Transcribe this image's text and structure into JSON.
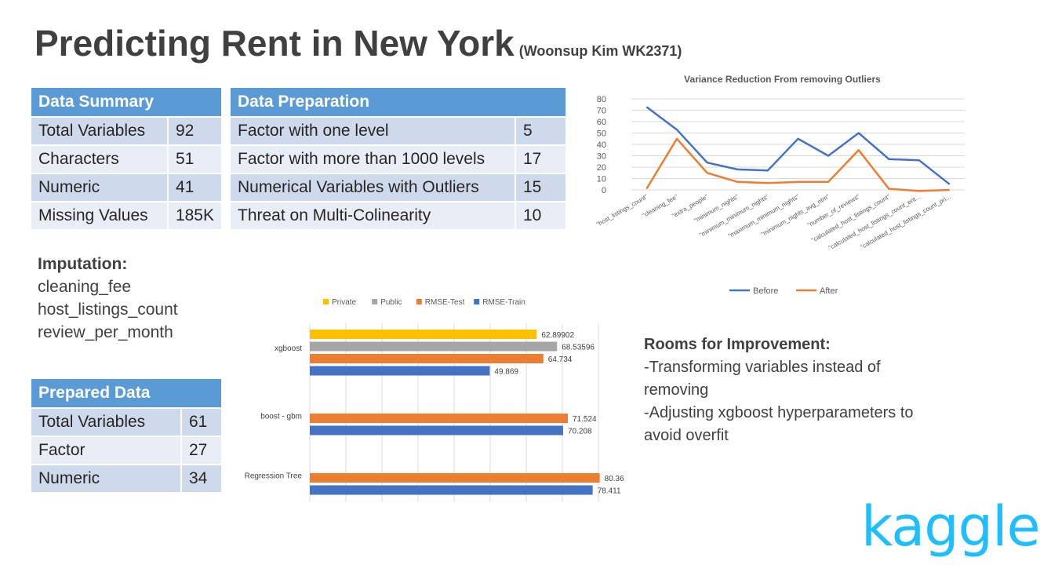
{
  "header": {
    "title": "Predicting Rent in New York",
    "subtitle": "(Woonsup  Kim WK2371)"
  },
  "data_summary": {
    "heading": "Data Summary",
    "rows": [
      {
        "label": "Total Variables",
        "value": "92"
      },
      {
        "label": "Characters",
        "value": "51"
      },
      {
        "label": "Numeric",
        "value": "41"
      },
      {
        "label": "Missing Values",
        "value": "185K"
      }
    ]
  },
  "data_preparation": {
    "heading": "Data Preparation",
    "rows": [
      {
        "label": "Factor with one level",
        "value": "5"
      },
      {
        "label": "Factor with more than 1000 levels",
        "value": "17"
      },
      {
        "label": "Numerical Variables with Outliers",
        "value": "15"
      },
      {
        "label": "Threat on Multi-Colinearity",
        "value": "10"
      }
    ]
  },
  "imputation": {
    "heading": "Imputation:",
    "items": [
      "cleaning_fee",
      "host_listings_count",
      "review_per_month"
    ]
  },
  "prepared_data": {
    "heading": "Prepared Data",
    "rows": [
      {
        "label": "Total Variables",
        "value": "61"
      },
      {
        "label": "Factor",
        "value": "27"
      },
      {
        "label": "Numeric",
        "value": "34"
      }
    ]
  },
  "improvement": {
    "heading": "Rooms for Improvement:",
    "lines": [
      "-Transforming variables instead of",
      "removing",
      "-Adjusting xgboost hyperparameters to",
      "avoid overfit"
    ]
  },
  "logo": {
    "text": "kaggle"
  },
  "colors": {
    "accent": "#5b9bd5",
    "before": "#4472c4",
    "after": "#ed7d31",
    "private": "#ffc000",
    "public": "#a5a5a5",
    "kaggle": "#20beff"
  },
  "chart_data": [
    {
      "type": "line",
      "title": "Variance Reduction From removing Outliers",
      "categories": [
        "\"host_listings_count\"",
        "\"cleaning_fee\"",
        "\"extra_people\"",
        "\"minimum_nights\"",
        "\"minimum_minimum_nights\"",
        "\"maximum_minimum_nights\"",
        "\"minimum_nights_avg_ntm\"",
        "\"number_of_reviews\"",
        "\"calculated_host_listings_count\"",
        "\"calculated_host_listings_count_ent...",
        "\"calculated_host_listings_count_pri..."
      ],
      "ylim": [
        0,
        80
      ],
      "yticks": [
        "0",
        "10",
        "20",
        "30",
        "40",
        "50",
        "60",
        "70",
        "80"
      ],
      "grid": true,
      "legend": "bottom",
      "series": [
        {
          "name": "Before",
          "color": "#4472c4",
          "values": [
            73,
            53,
            24,
            18,
            17,
            45,
            30,
            50,
            27,
            26,
            5
          ]
        },
        {
          "name": "After",
          "color": "#ed7d31",
          "values": [
            1,
            45,
            15,
            7,
            6,
            7,
            7,
            35,
            1,
            -1,
            0
          ]
        }
      ]
    },
    {
      "type": "bar",
      "orientation": "horizontal",
      "categories": [
        "xgboost",
        "boost - gbm",
        "Regression Tree"
      ],
      "xlim": [
        0,
        80
      ],
      "grid": true,
      "legend": "top",
      "legend_order": [
        "Private",
        "Public",
        "RMSE-Test",
        "RMSE-Train"
      ],
      "series": [
        {
          "name": "Private",
          "color": "#ffc000",
          "values": [
            62.89902,
            null,
            null
          ],
          "labels": [
            "62.89902",
            "",
            ""
          ]
        },
        {
          "name": "Public",
          "color": "#a5a5a5",
          "values": [
            68.53596,
            null,
            null
          ],
          "labels": [
            "68.53596",
            "",
            ""
          ]
        },
        {
          "name": "RMSE-Test",
          "color": "#ed7d31",
          "values": [
            64.734,
            71.524,
            80.36
          ],
          "labels": [
            "64.734",
            "71.524",
            "80.36"
          ]
        },
        {
          "name": "RMSE-Train",
          "color": "#4472c4",
          "values": [
            49.869,
            70.208,
            78.411
          ],
          "labels": [
            "49.869",
            "70.208",
            "78.411"
          ]
        }
      ]
    }
  ]
}
